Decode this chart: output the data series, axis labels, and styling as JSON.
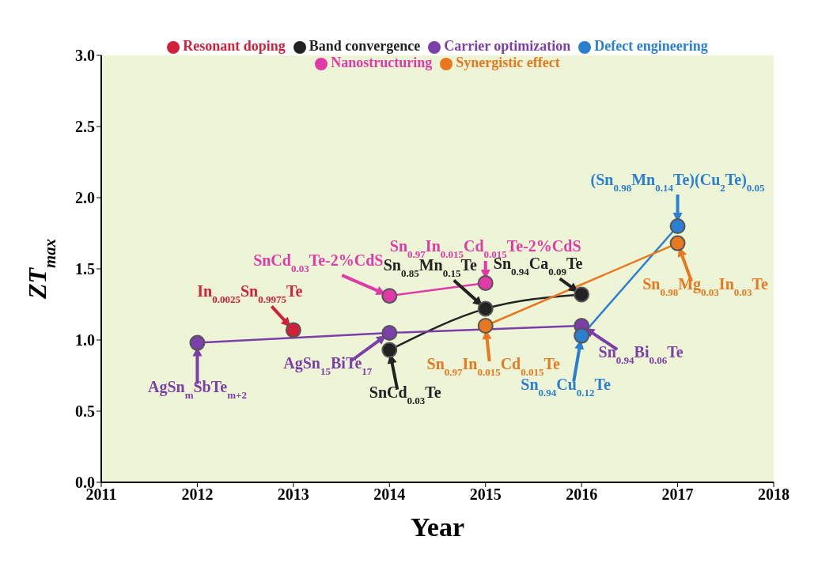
{
  "chart_data": {
    "type": "line",
    "xlabel": "Year",
    "ylabel": "ZT$_{max}$",
    "xlim": [
      2011,
      2018
    ],
    "xticks": [
      2011,
      2012,
      2013,
      2014,
      2015,
      2016,
      2017,
      2018
    ],
    "ylim": [
      0,
      3
    ],
    "yticks": [
      {
        "value": 0,
        "label": "0.0"
      },
      {
        "value": 0.5,
        "label": "0.5"
      },
      {
        "value": 1,
        "label": "1.0"
      },
      {
        "value": 1.5,
        "label": "1.5"
      },
      {
        "value": 2,
        "label": "2.0"
      },
      {
        "value": 2.5,
        "label": "2.5"
      },
      {
        "value": 3,
        "label": "3.0"
      }
    ],
    "grid": false,
    "legend": "top",
    "marker": "circle",
    "line_style": "solid",
    "series": [
      {
        "name": "Resonant doping",
        "color": "#d0203a",
        "x": [
          2013
        ],
        "values": [
          1.07
        ]
      },
      {
        "name": "Band convergence",
        "color": "#222222",
        "x": [
          2014,
          2015,
          2016
        ],
        "values": [
          0.93,
          1.22,
          1.32
        ]
      },
      {
        "name": "Carrier optimization",
        "color": "#7a3fa8",
        "x": [
          2012,
          2014,
          2016
        ],
        "values": [
          0.98,
          1.05,
          1.1
        ]
      },
      {
        "name": "Defect engineering",
        "color": "#2a7fd0",
        "x": [
          2016,
          2017
        ],
        "values": [
          1.03,
          1.8
        ]
      },
      {
        "name": "Nanostructuring",
        "color": "#e03aa8",
        "x": [
          2014,
          2015
        ],
        "values": [
          1.31,
          1.4
        ]
      },
      {
        "name": "Synergistic effect",
        "color": "#e87820",
        "x": [
          2015,
          2017
        ],
        "values": [
          1.1,
          1.68
        ]
      }
    ],
    "annotations": [
      {
        "text": "AgSn$_{m}$SbTe$_{m+2}$",
        "x": 2012,
        "y": 0.98
      },
      {
        "text": "In$_{0.0025}$Sn$_{0.9975}$Te",
        "x": 2013,
        "y": 1.07
      },
      {
        "text": "AgSn$_{15}$BiTe$_{17}$",
        "x": 2014,
        "y": 1.05
      },
      {
        "text": "SnCd$_{0.03}$Te",
        "x": 2014,
        "y": 0.93
      },
      {
        "text": "SnCd$_{0.03}$Te-2%CdS",
        "x": 2014,
        "y": 1.31
      },
      {
        "text": "Sn$_{0.85}$Mn$_{0.15}$Te",
        "x": 2015,
        "y": 1.22
      },
      {
        "text": "Sn$_{0.97}$In$_{0.015}$Cd$_{0.015}$Te-2%CdS",
        "x": 2015,
        "y": 1.4
      },
      {
        "text": "Sn$_{0.97}$In$_{0.015}$Cd$_{0.015}$Te",
        "x": 2015,
        "y": 1.1
      },
      {
        "text": "Sn$_{0.94}$Cu$_{0.12}$Te",
        "x": 2016,
        "y": 1.03
      },
      {
        "text": "Sn$_{0.94}$Bi$_{0.06}$Te",
        "x": 2016,
        "y": 1.1
      },
      {
        "text": "Sn$_{0.94}$Ca$_{0.09}$Te",
        "x": 2016,
        "y": 1.32
      },
      {
        "text": "Sn$_{0.98}$Mg$_{0.03}$In$_{0.03}$Te",
        "x": 2017,
        "y": 1.68
      },
      {
        "text": "(Sn$_{0.98}$Mn$_{0.14}$Te)(Cu$_{2}$Te)$_{0.05}$",
        "x": 2017,
        "y": 1.8
      }
    ]
  }
}
